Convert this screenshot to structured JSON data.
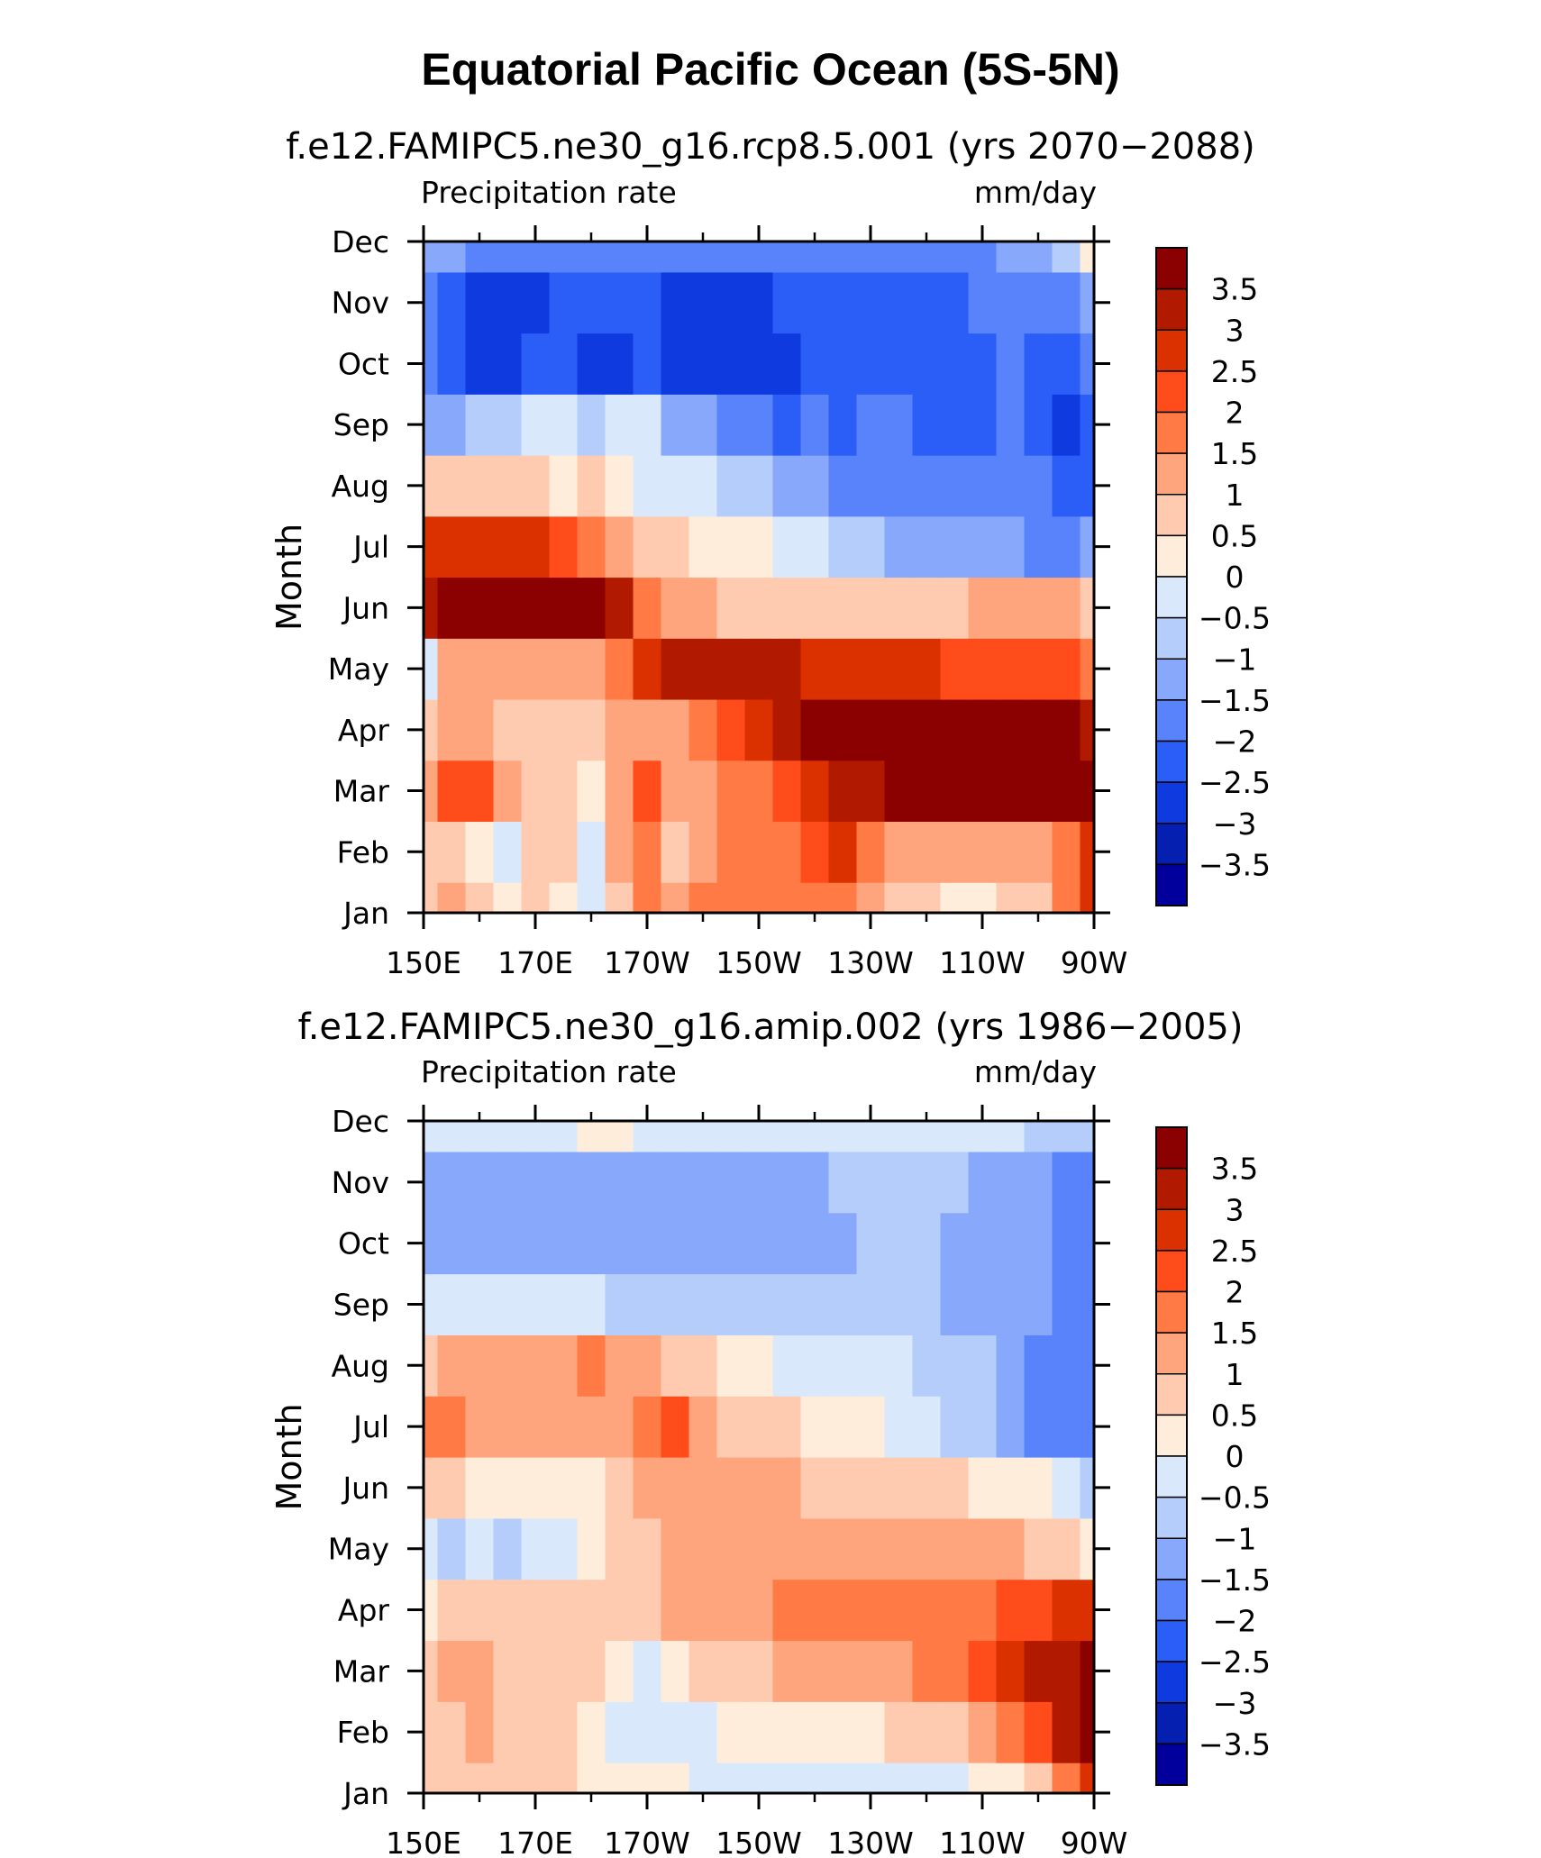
{
  "figure": {
    "title": "Equatorial Pacific Ocean (5S-5N)"
  },
  "colorbar": {
    "levels": [
      "3.5",
      "3",
      "2.5",
      "2",
      "1.5",
      "1",
      "0.5",
      "0",
      "−0.5",
      "−1",
      "−1.5",
      "−2",
      "−2.5",
      "−3",
      "−3.5"
    ],
    "colors": [
      "#8b0000",
      "#b21a00",
      "#db3000",
      "#ff4c1a",
      "#ff7a45",
      "#ffa57d",
      "#ffcbb0",
      "#ffeddb",
      "#d9e8fb",
      "#b4cdfb",
      "#87a8fb",
      "#5883fb",
      "#2b5ef7",
      "#0e3ae0",
      "#0520b0",
      "#01009c"
    ]
  },
  "chart_data": [
    {
      "type": "heatmap",
      "title": "f.e12.FAMIPC5.ne30_g16.rcp8.5.001 (yrs 2070−2088)",
      "left_label": "Precipitation rate",
      "right_label": "mm/day",
      "ylabel": "Month",
      "xlabel": "",
      "x_ticks": [
        "150E",
        "170E",
        "170W",
        "150W",
        "130W",
        "110W",
        "90W"
      ],
      "x_tick_lons": [
        150,
        170,
        190,
        210,
        230,
        250,
        270
      ],
      "x": [
        150,
        155,
        160,
        165,
        170,
        175,
        180,
        185,
        190,
        195,
        200,
        205,
        210,
        215,
        220,
        225,
        230,
        235,
        240,
        245,
        250,
        255,
        260,
        265,
        270
      ],
      "y_ticks": [
        "Jan",
        "Feb",
        "Mar",
        "Apr",
        "May",
        "Jun",
        "Jul",
        "Aug",
        "Sep",
        "Oct",
        "Nov",
        "Dec"
      ],
      "y": [
        "Jan",
        "Feb",
        "Mar",
        "Apr",
        "May",
        "Jun",
        "Jul",
        "Aug",
        "Sep",
        "Oct",
        "Nov",
        "Dec"
      ],
      "z": [
        [
          0.5,
          1.0,
          0.5,
          0.0,
          0.5,
          0.0,
          -0.3,
          0.5,
          1.5,
          1.0,
          1.5,
          1.5,
          1.5,
          1.5,
          1.5,
          1.5,
          1.0,
          0.5,
          0.5,
          0.0,
          0.0,
          0.5,
          0.5,
          1.5,
          2.5
        ],
        [
          0.5,
          0.5,
          0.0,
          -0.5,
          0.5,
          0.5,
          -0.5,
          1.0,
          1.5,
          0.5,
          1.0,
          1.5,
          1.5,
          1.5,
          2.0,
          2.5,
          1.5,
          1.0,
          1.0,
          1.0,
          1.0,
          1.0,
          1.0,
          1.5,
          2.5
        ],
        [
          1.0,
          2.0,
          2.0,
          1.0,
          0.5,
          0.5,
          0.0,
          1.0,
          2.0,
          1.0,
          1.0,
          1.5,
          1.5,
          2.0,
          2.5,
          3.0,
          3.0,
          3.5,
          4.0,
          4.0,
          4.0,
          4.0,
          4.0,
          4.0,
          4.0
        ],
        [
          0.5,
          1.0,
          1.0,
          0.5,
          0.5,
          0.5,
          0.5,
          1.0,
          1.0,
          1.0,
          1.5,
          2.0,
          2.5,
          3.0,
          3.5,
          3.5,
          3.5,
          4.0,
          4.0,
          4.0,
          4.0,
          4.0,
          4.0,
          3.5,
          3.0
        ],
        [
          -0.3,
          1.0,
          1.0,
          1.0,
          1.0,
          1.0,
          1.0,
          1.5,
          2.5,
          3.0,
          3.0,
          3.0,
          3.0,
          3.0,
          2.5,
          2.5,
          2.5,
          2.5,
          2.5,
          2.0,
          2.0,
          2.0,
          2.0,
          2.0,
          1.5
        ],
        [
          3.0,
          3.5,
          3.5,
          3.5,
          3.5,
          3.5,
          4.0,
          3.0,
          1.5,
          1.0,
          1.0,
          0.5,
          0.5,
          0.5,
          0.5,
          0.5,
          0.5,
          0.5,
          0.5,
          0.5,
          1.0,
          1.0,
          1.0,
          1.0,
          0.5
        ],
        [
          2.5,
          2.5,
          2.5,
          2.5,
          2.5,
          2.0,
          1.5,
          1.0,
          0.5,
          0.5,
          0.0,
          0.0,
          0.0,
          -0.5,
          -0.5,
          -1.0,
          -1.0,
          -1.5,
          -1.5,
          -1.5,
          -1.5,
          -1.5,
          -2.0,
          -2.0,
          -1.5
        ],
        [
          0.5,
          0.5,
          0.5,
          0.5,
          0.5,
          0.0,
          0.5,
          0.0,
          -0.5,
          -0.5,
          -0.5,
          -1.0,
          -1.0,
          -1.5,
          -1.5,
          -2.0,
          -2.0,
          -2.0,
          -2.0,
          -2.0,
          -2.0,
          -2.0,
          -2.0,
          -2.5,
          -2.5
        ],
        [
          -1.5,
          -1.5,
          -1.0,
          -1.0,
          -0.5,
          -0.5,
          -1.0,
          -0.5,
          -0.5,
          -1.5,
          -1.5,
          -2.0,
          -2.0,
          -2.5,
          -2.0,
          -2.5,
          -2.0,
          -2.0,
          -2.5,
          -2.5,
          -2.5,
          -2.0,
          -2.5,
          -3.0,
          -2.5
        ],
        [
          -2.0,
          -2.5,
          -3.0,
          -3.0,
          -2.5,
          -2.5,
          -3.0,
          -3.0,
          -2.5,
          -3.0,
          -3.0,
          -3.0,
          -3.0,
          -3.0,
          -2.5,
          -2.5,
          -2.5,
          -2.5,
          -2.5,
          -2.5,
          -2.5,
          -2.0,
          -2.5,
          -2.5,
          -2.0
        ],
        [
          -2.0,
          -2.5,
          -3.0,
          -3.0,
          -3.0,
          -2.5,
          -2.5,
          -2.5,
          -2.5,
          -3.0,
          -3.0,
          -3.0,
          -3.0,
          -2.5,
          -2.5,
          -2.5,
          -2.5,
          -2.5,
          -2.5,
          -2.5,
          -2.0,
          -2.0,
          -2.0,
          -2.0,
          -1.5
        ],
        [
          -1.5,
          -1.5,
          -2.0,
          -2.0,
          -2.0,
          -2.0,
          -2.0,
          -2.0,
          -2.0,
          -2.0,
          -2.0,
          -2.0,
          -2.0,
          -2.0,
          -2.0,
          -2.0,
          -2.0,
          -2.0,
          -2.0,
          -2.0,
          -2.0,
          -1.5,
          -1.5,
          -1.0,
          0.0
        ]
      ],
      "color_levels": [
        -3.5,
        -3,
        -2.5,
        -2,
        -1.5,
        -1,
        -0.5,
        0,
        0.5,
        1,
        1.5,
        2,
        2.5,
        3,
        3.5
      ],
      "grid": false,
      "legend": "right"
    },
    {
      "type": "heatmap",
      "title": "f.e12.FAMIPC5.ne30_g16.amip.002 (yrs 1986−2005)",
      "left_label": "Precipitation rate",
      "right_label": "mm/day",
      "ylabel": "Month",
      "xlabel": "",
      "x_ticks": [
        "150E",
        "170E",
        "170W",
        "150W",
        "130W",
        "110W",
        "90W"
      ],
      "x_tick_lons": [
        150,
        170,
        190,
        210,
        230,
        250,
        270
      ],
      "x": [
        150,
        155,
        160,
        165,
        170,
        175,
        180,
        185,
        190,
        195,
        200,
        205,
        210,
        215,
        220,
        225,
        230,
        235,
        240,
        245,
        250,
        255,
        260,
        265,
        270
      ],
      "y_ticks": [
        "Jan",
        "Feb",
        "Mar",
        "Apr",
        "May",
        "Jun",
        "Jul",
        "Aug",
        "Sep",
        "Oct",
        "Nov",
        "Dec"
      ],
      "y": [
        "Jan",
        "Feb",
        "Mar",
        "Apr",
        "May",
        "Jun",
        "Jul",
        "Aug",
        "Sep",
        "Oct",
        "Nov",
        "Dec"
      ],
      "z": [
        [
          0.5,
          0.5,
          0.5,
          0.5,
          0.5,
          0.5,
          0.0,
          0.0,
          0.0,
          0.0,
          -0.5,
          -0.5,
          -0.5,
          -0.5,
          -0.5,
          -0.5,
          -0.5,
          -0.5,
          -0.5,
          -0.5,
          0.0,
          0.0,
          0.5,
          1.5,
          2.5
        ],
        [
          0.5,
          0.5,
          1.0,
          0.5,
          0.5,
          0.5,
          0.0,
          -0.5,
          -0.5,
          -0.5,
          -0.5,
          0.0,
          0.0,
          0.0,
          0.0,
          0.0,
          0.0,
          0.5,
          0.5,
          0.5,
          1.0,
          1.5,
          2.0,
          3.0,
          3.5
        ],
        [
          0.5,
          1.0,
          1.0,
          0.5,
          0.5,
          0.5,
          0.5,
          0.0,
          -0.5,
          0.0,
          0.5,
          0.5,
          0.5,
          1.0,
          1.0,
          1.0,
          1.0,
          1.0,
          1.5,
          1.5,
          2.0,
          2.5,
          3.0,
          3.0,
          4.0
        ],
        [
          0.0,
          0.5,
          0.5,
          0.5,
          0.5,
          0.5,
          0.5,
          0.5,
          0.5,
          1.0,
          1.0,
          1.0,
          1.0,
          1.5,
          1.5,
          1.5,
          1.5,
          1.5,
          1.5,
          1.5,
          1.5,
          2.0,
          2.0,
          2.5,
          2.5
        ],
        [
          -0.5,
          -1.0,
          -0.5,
          -1.0,
          -0.5,
          -0.5,
          0.0,
          0.5,
          0.5,
          1.0,
          1.0,
          1.0,
          1.0,
          1.0,
          1.0,
          1.0,
          1.0,
          1.0,
          1.0,
          1.0,
          1.0,
          1.0,
          0.5,
          0.5,
          0.0
        ],
        [
          0.5,
          0.5,
          0.0,
          0.0,
          0.0,
          0.0,
          0.0,
          0.5,
          1.0,
          1.0,
          1.0,
          1.0,
          1.0,
          1.0,
          0.5,
          0.5,
          0.5,
          0.5,
          0.5,
          0.5,
          0.0,
          0.0,
          0.0,
          -0.5,
          -1.0
        ],
        [
          1.5,
          1.5,
          1.0,
          1.0,
          1.0,
          1.0,
          1.0,
          1.0,
          1.5,
          2.0,
          1.0,
          0.5,
          0.5,
          0.5,
          0.0,
          0.0,
          0.0,
          -0.5,
          -0.5,
          -1.0,
          -1.0,
          -1.5,
          -2.0,
          -2.0,
          -2.0
        ],
        [
          0.5,
          1.0,
          1.0,
          1.0,
          1.0,
          1.0,
          1.5,
          1.0,
          1.0,
          0.5,
          0.5,
          0.0,
          0.0,
          -0.5,
          -0.5,
          -0.5,
          -0.5,
          -0.5,
          -1.0,
          -1.0,
          -1.0,
          -1.5,
          -2.0,
          -2.0,
          -2.0
        ],
        [
          -0.5,
          -0.5,
          -0.5,
          -0.5,
          -0.5,
          -0.5,
          -0.5,
          -1.0,
          -1.0,
          -1.0,
          -1.0,
          -1.0,
          -1.0,
          -1.0,
          -1.0,
          -1.0,
          -1.0,
          -1.0,
          -1.0,
          -1.5,
          -1.5,
          -1.5,
          -1.5,
          -2.0,
          -2.0
        ],
        [
          -1.5,
          -1.5,
          -1.5,
          -1.5,
          -1.5,
          -1.5,
          -1.5,
          -1.5,
          -1.5,
          -1.5,
          -1.5,
          -1.5,
          -1.5,
          -1.5,
          -1.5,
          -1.5,
          -1.0,
          -1.0,
          -1.0,
          -1.5,
          -1.5,
          -1.5,
          -1.5,
          -2.0,
          -2.0
        ],
        [
          -1.5,
          -1.5,
          -1.5,
          -1.5,
          -1.5,
          -1.5,
          -1.5,
          -1.5,
          -1.5,
          -1.5,
          -1.5,
          -1.5,
          -1.5,
          -1.5,
          -1.5,
          -1.0,
          -1.0,
          -1.0,
          -1.0,
          -1.0,
          -1.5,
          -1.5,
          -1.5,
          -2.0,
          -2.0
        ],
        [
          -0.5,
          -0.5,
          -0.5,
          -0.5,
          -0.5,
          -0.5,
          0.0,
          0.0,
          -0.5,
          -0.5,
          -0.5,
          -0.5,
          -0.5,
          -0.5,
          -0.5,
          -0.5,
          -0.5,
          -0.5,
          -0.5,
          -0.5,
          -0.5,
          -0.5,
          -1.0,
          -1.0,
          -1.0
        ]
      ],
      "color_levels": [
        -3.5,
        -3,
        -2.5,
        -2,
        -1.5,
        -1,
        -0.5,
        0,
        0.5,
        1,
        1.5,
        2,
        2.5,
        3,
        3.5
      ],
      "grid": false,
      "legend": "right"
    }
  ]
}
